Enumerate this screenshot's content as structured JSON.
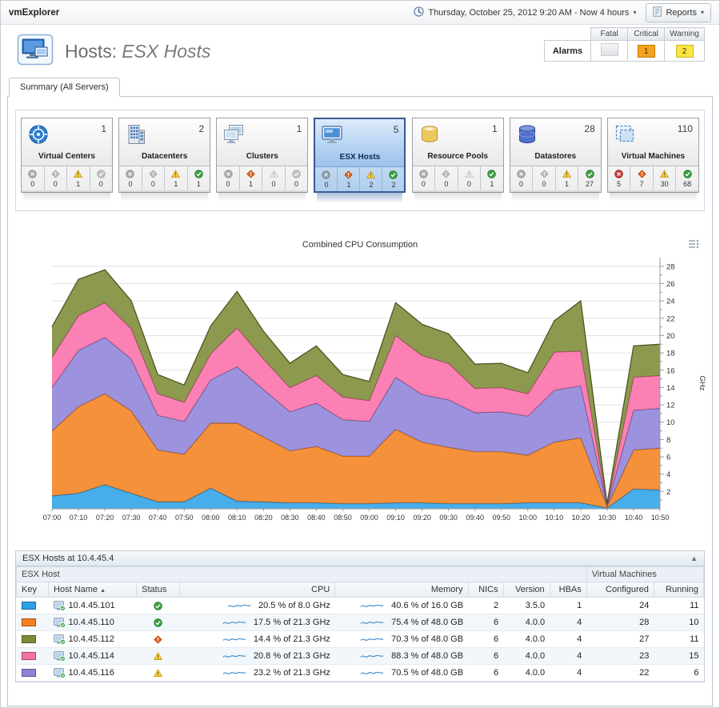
{
  "app": {
    "title": "vmExplorer"
  },
  "topbar": {
    "time_range": "Thursday, October 25, 2012 9:20 AM - Now 4 hours",
    "reports_label": "Reports"
  },
  "header": {
    "title_prefix": "Hosts:",
    "title_emphasis": "ESX Hosts",
    "alarms": {
      "label": "Alarms",
      "columns": [
        "Fatal",
        "Critical",
        "Warning"
      ],
      "values": {
        "fatal": "",
        "critical": "1",
        "warning": "2"
      }
    }
  },
  "tabs": [
    {
      "label": "Summary (All Servers)",
      "active": true
    }
  ],
  "tiles": [
    {
      "label": "Virtual Centers",
      "icon": "virtual-center",
      "count": 1,
      "selected": false,
      "statuses": {
        "fatal": 0,
        "critical": 0,
        "warning": 1,
        "normal": 0
      }
    },
    {
      "label": "Datacenters",
      "icon": "datacenter",
      "count": 2,
      "selected": false,
      "statuses": {
        "fatal": 0,
        "critical": 0,
        "warning": 1,
        "normal": 1
      }
    },
    {
      "label": "Clusters",
      "icon": "cluster",
      "count": 1,
      "selected": false,
      "statuses": {
        "fatal": 0,
        "critical": 1,
        "warning": 0,
        "normal": 0
      }
    },
    {
      "label": "ESX Hosts",
      "icon": "esx-host",
      "count": 5,
      "selected": true,
      "statuses": {
        "fatal": 0,
        "critical": 1,
        "warning": 2,
        "normal": 2
      }
    },
    {
      "label": "Resource Pools",
      "icon": "resource-pool",
      "count": 1,
      "selected": false,
      "statuses": {
        "fatal": 0,
        "critical": 0,
        "warning": 0,
        "normal": 1
      }
    },
    {
      "label": "Datastores",
      "icon": "datastore",
      "count": 28,
      "selected": false,
      "statuses": {
        "fatal": 0,
        "critical": 0,
        "warning": 1,
        "normal": 27
      }
    },
    {
      "label": "Virtual Machines",
      "icon": "virtual-machine",
      "count": 110,
      "selected": false,
      "statuses": {
        "fatal": 5,
        "critical": 7,
        "warning": 30,
        "normal": 68
      }
    }
  ],
  "chart_data": {
    "type": "area",
    "stacked": true,
    "title": "Combined CPU Consumption",
    "ylabel": "GHz",
    "xlabel": "",
    "ylim": [
      0,
      29
    ],
    "ytick_step": 2,
    "yaxis_side": "right",
    "grid": true,
    "legend": "table-key",
    "x": [
      "07:00",
      "07:10",
      "07:20",
      "07:30",
      "07:40",
      "07:50",
      "08:00",
      "08:10",
      "08:20",
      "08:30",
      "08:40",
      "08:50",
      "09:00",
      "09:10",
      "09:20",
      "09:30",
      "09:40",
      "09:50",
      "10:00",
      "10:10",
      "10:20",
      "10:30",
      "10:40",
      "10:50"
    ],
    "series": [
      {
        "name": "10.4.45.101",
        "color": "#2ea2e8",
        "values": [
          1.5,
          1.8,
          2.8,
          1.8,
          0.8,
          0.8,
          2.4,
          0.9,
          0.8,
          0.7,
          0.7,
          0.6,
          0.6,
          0.7,
          0.7,
          0.6,
          0.6,
          0.6,
          0.7,
          0.7,
          0.7,
          0.1,
          2.3,
          2.2
        ]
      },
      {
        "name": "10.4.45.110",
        "color": "#f58220",
        "values": [
          7.5,
          10.0,
          10.5,
          9.5,
          6.0,
          5.5,
          7.5,
          9.0,
          7.5,
          6.0,
          6.5,
          5.5,
          5.5,
          8.5,
          7.0,
          6.5,
          6.0,
          6.0,
          5.5,
          7.0,
          7.5,
          0.2,
          4.5,
          4.8
        ]
      },
      {
        "name": "10.4.45.116",
        "color": "#8f83d8",
        "values": [
          5.0,
          6.5,
          6.5,
          6.0,
          4.0,
          3.8,
          5.0,
          6.5,
          5.5,
          4.5,
          5.0,
          4.2,
          4.0,
          6.0,
          5.5,
          5.5,
          4.5,
          4.6,
          4.5,
          6.0,
          6.0,
          0.1,
          4.6,
          4.6
        ]
      },
      {
        "name": "10.4.45.114",
        "color": "#fa6ea8",
        "values": [
          3.5,
          4.0,
          4.0,
          3.5,
          2.5,
          2.2,
          3.0,
          4.5,
          3.5,
          2.8,
          3.2,
          2.6,
          2.4,
          4.8,
          4.5,
          4.2,
          2.8,
          2.8,
          2.6,
          4.4,
          4.0,
          0.1,
          3.8,
          3.8
        ]
      },
      {
        "name": "10.4.45.112",
        "color": "#7d8b37",
        "values": [
          3.5,
          4.2,
          3.8,
          3.2,
          2.2,
          2.0,
          3.2,
          4.2,
          3.2,
          2.8,
          3.4,
          2.6,
          2.2,
          3.8,
          3.6,
          3.4,
          2.8,
          2.8,
          2.4,
          3.6,
          5.8,
          0.1,
          3.6,
          3.6
        ]
      }
    ]
  },
  "table": {
    "panel_title": "ESX Hosts at 10.4.45.4",
    "group_headers": {
      "left": "ESX Host",
      "right": "Virtual Machines"
    },
    "columns": [
      "Key",
      "Host Name",
      "Status",
      "CPU",
      "Memory",
      "NICs",
      "Version",
      "HBAs",
      "Configured",
      "Running"
    ],
    "sort_column": "Host Name",
    "rows": [
      {
        "key_color": "#2ea2e8",
        "host": "10.4.45.101",
        "status": "normal",
        "cpu": "20.5 % of 8.0 GHz",
        "memory": "40.6 % of 16.0 GB",
        "nics": 2,
        "version": "3.5.0",
        "hbas": 1,
        "configured": 24,
        "running": 11
      },
      {
        "key_color": "#f58220",
        "host": "10.4.45.110",
        "status": "normal",
        "cpu": "17.5 % of 21.3 GHz",
        "memory": "75.4 % of 48.0 GB",
        "nics": 6,
        "version": "4.0.0",
        "hbas": 4,
        "configured": 28,
        "running": 10
      },
      {
        "key_color": "#7d8b37",
        "host": "10.4.45.112",
        "status": "critical",
        "cpu": "14.4 % of 21.3 GHz",
        "memory": "70.3 % of 48.0 GB",
        "nics": 6,
        "version": "4.0.0",
        "hbas": 4,
        "configured": 27,
        "running": 11
      },
      {
        "key_color": "#fa6ea8",
        "host": "10.4.45.114",
        "status": "warning",
        "cpu": "20.8 % of 21.3 GHz",
        "memory": "88.3 % of 48.0 GB",
        "nics": 6,
        "version": "4.0.0",
        "hbas": 4,
        "configured": 23,
        "running": 15
      },
      {
        "key_color": "#8f83d8",
        "host": "10.4.45.116",
        "status": "warning",
        "cpu": "23.2 % of 21.3 GHz",
        "memory": "70.5 % of 48.0 GB",
        "nics": 6,
        "version": "4.0.0",
        "hbas": 4,
        "configured": 22,
        "running": 6
      }
    ]
  }
}
